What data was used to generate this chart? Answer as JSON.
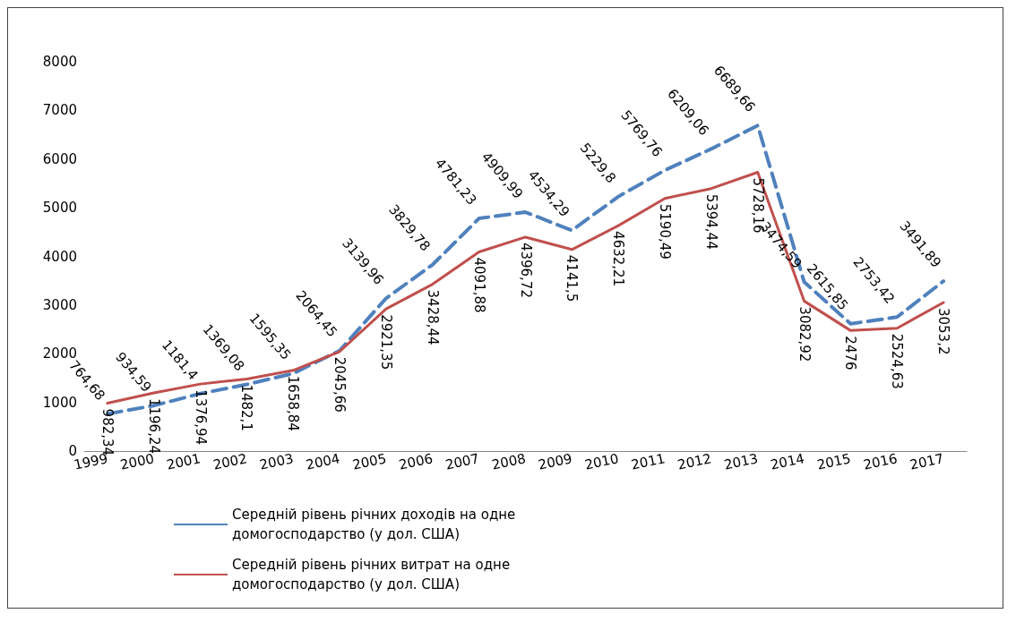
{
  "chart_data": {
    "type": "line",
    "categories": [
      "1999",
      "2000",
      "2001",
      "2002",
      "2003",
      "2004",
      "2005",
      "2006",
      "2007",
      "2008",
      "2009",
      "2010",
      "2011",
      "2012",
      "2013",
      "2014",
      "2015",
      "2016",
      "2017"
    ],
    "series": [
      {
        "name": "Середній рівень річних доходів на одне домогосподарство (у дол. США)",
        "color": "#4f81bd",
        "line_style": "dashed",
        "values": [
          764.68,
          934.59,
          1181.4,
          1369.08,
          1595.35,
          2064.45,
          3139.96,
          3829.78,
          4781.23,
          4909.99,
          4534.29,
          5229.8,
          5769.76,
          6209.06,
          6689.66,
          3474.59,
          2615.85,
          2753.42,
          3491.89
        ],
        "value_labels": [
          "764,68",
          "934,59",
          "1181,4",
          "1369,08",
          "1595,35",
          "2064,45",
          "3139,96",
          "3829,78",
          "4781,23",
          "4909,99",
          "4534,29",
          "5229,8",
          "5769,76",
          "6209,06",
          "6689,66",
          "3474,59",
          "2615,85",
          "2753,42",
          "3491,89"
        ]
      },
      {
        "name": "Середній рівень річних витрат на одне домогосподарство (у дол. США)",
        "color": "#c0504d",
        "line_style": "solid",
        "values": [
          982.34,
          1196.24,
          1376.94,
          1482.1,
          1658.84,
          2045.66,
          2921.35,
          3428.44,
          4091.88,
          4396.72,
          4141.5,
          4632.21,
          5190.49,
          5394.44,
          5728.16,
          3082.92,
          2476,
          2524.63,
          3053.2
        ],
        "value_labels": [
          "982,34",
          "1196,24",
          "1376,94",
          "1482,1",
          "1658,84",
          "2045,66",
          "2921,35",
          "3428,44",
          "4091,88",
          "4396,72",
          "4141,5",
          "4632,21",
          "5190,49",
          "5394,44",
          "5728,16",
          "3082,92",
          "2476",
          "2524,63",
          "3053,2"
        ]
      }
    ],
    "ylim": [
      0,
      8000
    ],
    "yticks": [
      0,
      1000,
      2000,
      3000,
      4000,
      5000,
      6000,
      7000,
      8000
    ],
    "grid": false,
    "legend": "bottom",
    "marker": "none"
  }
}
